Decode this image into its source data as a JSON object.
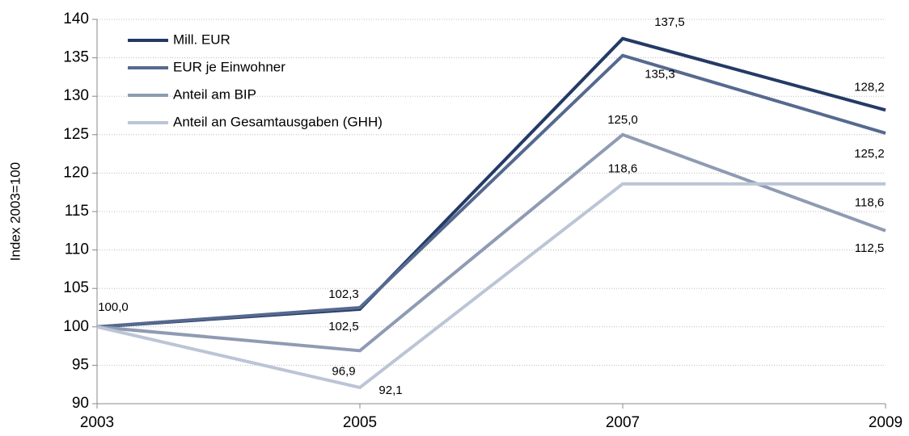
{
  "chart_data": {
    "type": "line",
    "y_label": "Index 2003=100",
    "x": [
      2003,
      2005,
      2007,
      2009
    ],
    "xlim": [
      2003,
      2009
    ],
    "xticks": [
      2003,
      2005,
      2007,
      2009
    ],
    "ylim": [
      90,
      140
    ],
    "yticks": [
      90,
      95,
      100,
      105,
      110,
      115,
      120,
      125,
      130,
      135,
      140
    ],
    "grid": true,
    "legend": "upper left",
    "series": [
      {
        "name": "Mill. EUR",
        "color": "#243a66",
        "values": [
          100,
          102.3,
          137.5,
          128.2
        ],
        "value_labels": [
          "100,0",
          "102,3",
          "137,5",
          "128,2"
        ]
      },
      {
        "name": "EUR je Einwohner",
        "color": "#56698f",
        "values": [
          100,
          102.5,
          135.3,
          125.2
        ],
        "value_labels": [
          null,
          "102,5",
          "135,3",
          "125,2"
        ]
      },
      {
        "name": "Anteil am BIP",
        "color": "#8f9bb3",
        "values": [
          100,
          96.9,
          125.0,
          112.5
        ],
        "value_labels": [
          null,
          "96,9",
          "125,0",
          "112,5"
        ]
      },
      {
        "name": "Anteil an Gesamtausgaben (GHH)",
        "color": "#bcc5d6",
        "values": [
          100,
          92.1,
          118.6,
          118.6
        ],
        "value_labels": [
          null,
          "92,1",
          "118,6",
          "118,6"
        ]
      }
    ]
  }
}
